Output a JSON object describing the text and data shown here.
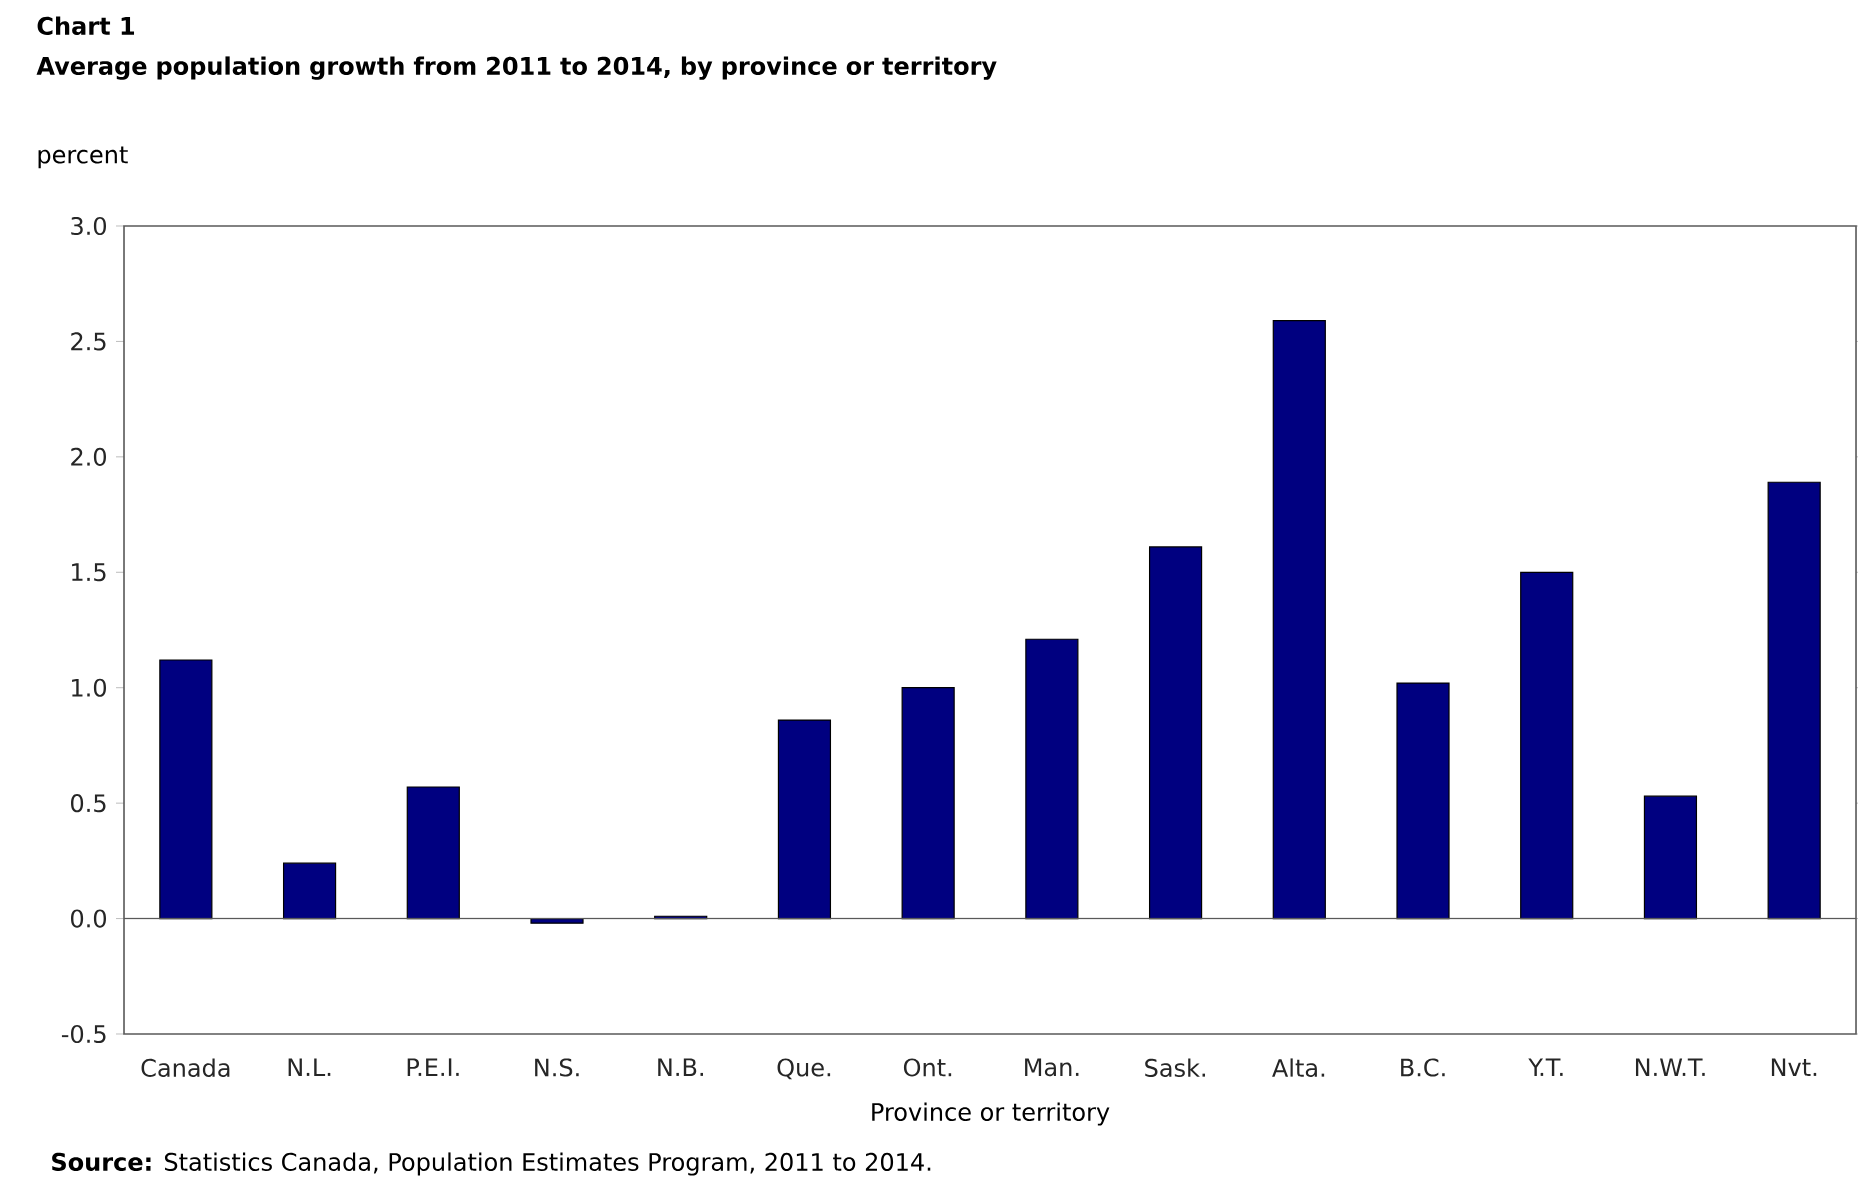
{
  "chart_data": {
    "type": "bar",
    "title": "Chart 1",
    "subtitle": "Average population growth from 2011 to 2014, by province or territory",
    "ylabel": "percent",
    "xlabel": "Province or territory",
    "categories": [
      "Canada",
      "N.L.",
      "P.E.I.",
      "N.S.",
      "N.B.",
      "Que.",
      "Ont.",
      "Man.",
      "Sask.",
      "Alta.",
      "B.C.",
      "Y.T.",
      "N.W.T.",
      "Nvt."
    ],
    "values": [
      1.12,
      0.24,
      0.57,
      -0.02,
      0.01,
      0.86,
      1.0,
      1.21,
      1.61,
      2.59,
      1.02,
      1.5,
      0.53,
      1.89
    ],
    "color": "#000080",
    "ylim": [
      -0.5,
      3.0
    ],
    "yticks": [
      {
        "value": -0.5,
        "label": "-0.5"
      },
      {
        "value": 0,
        "label": "0.0"
      },
      {
        "value": 0.5,
        "label": "0.5"
      },
      {
        "value": 1,
        "label": "1.0"
      },
      {
        "value": 1.5,
        "label": "1.5"
      },
      {
        "value": 2,
        "label": "2.0"
      },
      {
        "value": 2.5,
        "label": "2.5"
      },
      {
        "value": 3,
        "label": "3.0"
      }
    ],
    "annotations": [
      "**Source:** Statistics Canada, Population Estimates Program, 2011 to 2014."
    ]
  }
}
